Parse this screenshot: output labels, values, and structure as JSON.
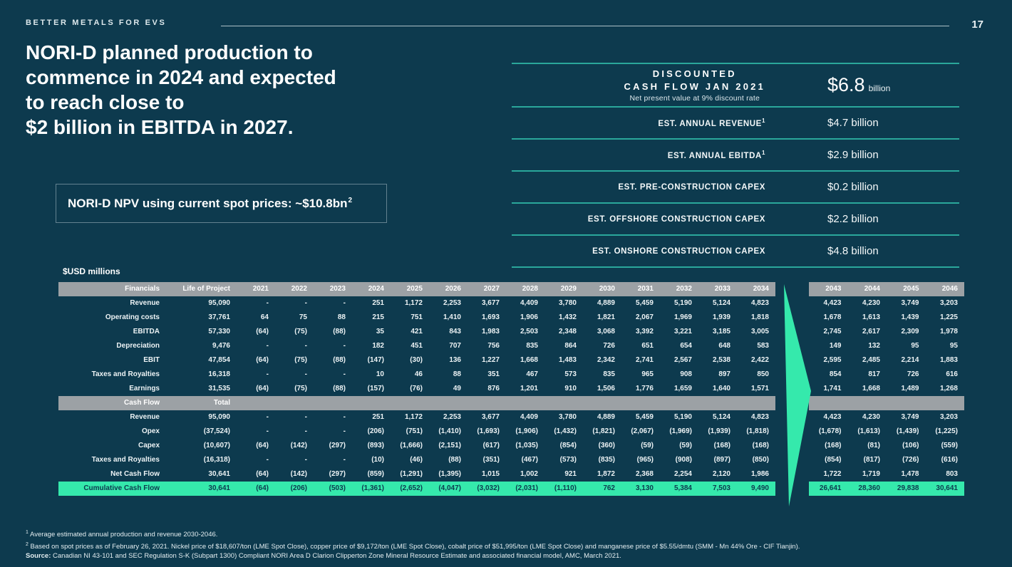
{
  "page": {
    "brand": "BETTER METALS FOR EVS",
    "page_number": "17"
  },
  "title": {
    "line1": "NORI-D planned production to",
    "line2": "commence in 2024 and expected",
    "line3": "to reach close to",
    "line4": "$2 billion in EBITDA in 2027."
  },
  "npv_box": {
    "text": "NORI-D NPV using current spot prices: ~$10.8bn",
    "sup": "2"
  },
  "dcf": {
    "header": {
      "title_line1": "DISCOUNTED",
      "title_line2": "CASH FLOW JAN 2021",
      "subtitle": "Net present value at 9% discount rate",
      "value": "$6.8",
      "unit": "billion"
    },
    "rows": [
      {
        "label": "EST. ANNUAL REVENUE",
        "sup": "1",
        "value": "$4.7 billion"
      },
      {
        "label": "EST. ANNUAL EBITDA",
        "sup": "1",
        "value": "$2.9 billion"
      },
      {
        "label": "EST. PRE-CONSTRUCTION CAPEX",
        "sup": "",
        "value": "$0.2 billion"
      },
      {
        "label": "EST. OFFSHORE CONSTRUCTION CAPEX",
        "sup": "",
        "value": "$2.2 billion"
      },
      {
        "label": "EST. ONSHORE CONSTRUCTION CAPEX",
        "sup": "",
        "value": "$4.8 billion"
      }
    ]
  },
  "table": {
    "unit_label": "$USD millions",
    "col_financials": "Financials",
    "col_life_of_project": "Life of Project",
    "years_main": [
      "2021",
      "2022",
      "2023",
      "2024",
      "2025",
      "2026",
      "2027",
      "2028",
      "2029",
      "2030",
      "2031",
      "2032",
      "2033",
      "2034"
    ],
    "years_right": [
      "2043",
      "2044",
      "2045",
      "2046"
    ],
    "rows": [
      {
        "label": "Revenue",
        "total": "95,090",
        "type": "data",
        "main": [
          "-",
          "-",
          "-",
          "251",
          "1,172",
          "2,253",
          "3,677",
          "4,409",
          "3,780",
          "4,889",
          "5,459",
          "5,190",
          "5,124",
          "4,823"
        ],
        "right": [
          "4,423",
          "4,230",
          "3,749",
          "3,203"
        ]
      },
      {
        "label": "Operating costs",
        "total": "37,761",
        "type": "data",
        "main": [
          "64",
          "75",
          "88",
          "215",
          "751",
          "1,410",
          "1,693",
          "1,906",
          "1,432",
          "1,821",
          "2,067",
          "1,969",
          "1,939",
          "1,818"
        ],
        "right": [
          "1,678",
          "1,613",
          "1,439",
          "1,225"
        ]
      },
      {
        "label": "EBITDA",
        "total": "57,330",
        "type": "data",
        "main": [
          "(64)",
          "(75)",
          "(88)",
          "35",
          "421",
          "843",
          "1,983",
          "2,503",
          "2,348",
          "3,068",
          "3,392",
          "3,221",
          "3,185",
          "3,005"
        ],
        "right": [
          "2,745",
          "2,617",
          "2,309",
          "1,978"
        ]
      },
      {
        "label": "Depreciation",
        "total": "9,476",
        "type": "data",
        "main": [
          "-",
          "-",
          "-",
          "182",
          "451",
          "707",
          "756",
          "835",
          "864",
          "726",
          "651",
          "654",
          "648",
          "583"
        ],
        "right": [
          "149",
          "132",
          "95",
          "95"
        ]
      },
      {
        "label": "EBIT",
        "total": "47,854",
        "type": "data",
        "main": [
          "(64)",
          "(75)",
          "(88)",
          "(147)",
          "(30)",
          "136",
          "1,227",
          "1,668",
          "1,483",
          "2,342",
          "2,741",
          "2,567",
          "2,538",
          "2,422"
        ],
        "right": [
          "2,595",
          "2,485",
          "2,214",
          "1,883"
        ]
      },
      {
        "label": "Taxes and Royalties",
        "total": "16,318",
        "type": "data",
        "main": [
          "-",
          "-",
          "-",
          "10",
          "46",
          "88",
          "351",
          "467",
          "573",
          "835",
          "965",
          "908",
          "897",
          "850"
        ],
        "right": [
          "854",
          "817",
          "726",
          "616"
        ]
      },
      {
        "label": "Earnings",
        "total": "31,535",
        "type": "data",
        "main": [
          "(64)",
          "(75)",
          "(88)",
          "(157)",
          "(76)",
          "49",
          "876",
          "1,201",
          "910",
          "1,506",
          "1,776",
          "1,659",
          "1,640",
          "1,571"
        ],
        "right": [
          "1,741",
          "1,668",
          "1,489",
          "1,268"
        ]
      },
      {
        "label": "Cash Flow",
        "total": "Total",
        "type": "section",
        "main": [
          "",
          "",
          "",
          "",
          "",
          "",
          "",
          "",
          "",
          "",
          "",
          "",
          "",
          ""
        ],
        "right": [
          "",
          "",
          "",
          ""
        ]
      },
      {
        "label": "Revenue",
        "total": "95,090",
        "type": "data",
        "main": [
          "-",
          "-",
          "-",
          "251",
          "1,172",
          "2,253",
          "3,677",
          "4,409",
          "3,780",
          "4,889",
          "5,459",
          "5,190",
          "5,124",
          "4,823"
        ],
        "right": [
          "4,423",
          "4,230",
          "3,749",
          "3,203"
        ]
      },
      {
        "label": "Opex",
        "total": "(37,524)",
        "type": "data",
        "main": [
          "-",
          "-",
          "-",
          "(206)",
          "(751)",
          "(1,410)",
          "(1,693)",
          "(1,906)",
          "(1,432)",
          "(1,821)",
          "(2,067)",
          "(1,969)",
          "(1,939)",
          "(1,818)"
        ],
        "right": [
          "(1,678)",
          "(1,613)",
          "(1,439)",
          "(1,225)"
        ]
      },
      {
        "label": "Capex",
        "total": "(10,607)",
        "type": "data",
        "main": [
          "(64)",
          "(142)",
          "(297)",
          "(893)",
          "(1,666)",
          "(2,151)",
          "(617)",
          "(1,035)",
          "(854)",
          "(360)",
          "(59)",
          "(59)",
          "(168)",
          "(168)"
        ],
        "right": [
          "(168)",
          "(81)",
          "(106)",
          "(559)"
        ]
      },
      {
        "label": "Taxes and Royalties",
        "total": "(16,318)",
        "type": "data",
        "main": [
          "-",
          "-",
          "-",
          "(10)",
          "(46)",
          "(88)",
          "(351)",
          "(467)",
          "(573)",
          "(835)",
          "(965)",
          "(908)",
          "(897)",
          "(850)"
        ],
        "right": [
          "(854)",
          "(817)",
          "(726)",
          "(616)"
        ]
      },
      {
        "label": "Net Cash Flow",
        "total": "30,641",
        "type": "data",
        "main": [
          "(64)",
          "(142)",
          "(297)",
          "(859)",
          "(1,291)",
          "(1,395)",
          "1,015",
          "1,002",
          "921",
          "1,872",
          "2,368",
          "2,254",
          "2,120",
          "1,986"
        ],
        "right": [
          "1,722",
          "1,719",
          "1,478",
          "803"
        ]
      },
      {
        "label": "Cumulative Cash Flow",
        "total": "30,641",
        "type": "highlight",
        "main": [
          "(64)",
          "(206)",
          "(503)",
          "(1,361)",
          "(2,652)",
          "(4,047)",
          "(3,032)",
          "(2,031)",
          "(1,110)",
          "762",
          "3,130",
          "5,384",
          "7,503",
          "9,490"
        ],
        "right": [
          "26,641",
          "28,360",
          "29,838",
          "30,641"
        ]
      }
    ]
  },
  "footnotes": {
    "n1": {
      "sup": "1",
      "text": "Average estimated annual production and revenue 2030-2046."
    },
    "n2": {
      "sup": "2",
      "text": "Based on spot prices as of February 26, 2021. Nickel price of $18,607/ton (LME Spot Close), copper price of $9,172/ton (LME Spot Close), cobalt price of $51,995/ton (LME Spot Close) and manganese price of $5.55/dmtu (SMM - Mn 44% Ore - CIF Tianjin)."
    },
    "source": {
      "prefix": "Source:",
      "text": " Canadian NI 43-101 and SEC Regulation S-K (Subpart 1300) Compliant NORI Area D Clarion Clipperton Zone Mineral Resource Estimate and associated financial model, AMC, March 2021."
    }
  },
  "colors": {
    "background": "#0d3a4e",
    "accent_mint": "#35e9ac",
    "accent_teal": "#2aa79b",
    "band_gray": "#9ca1a5"
  }
}
